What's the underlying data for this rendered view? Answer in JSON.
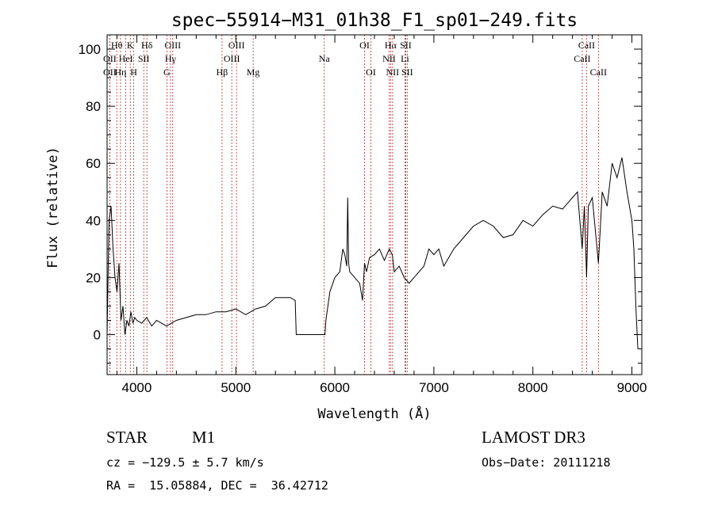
{
  "chart_data": {
    "type": "line",
    "title": "spec−55914−M31_01h38_F1_sp01−249.fits",
    "xlabel": "Wavelength (Å)",
    "ylabel": "Flux (relative)",
    "xlim": [
      3700,
      9100
    ],
    "ylim": [
      -14,
      105
    ],
    "xticks": [
      4000,
      5000,
      6000,
      7000,
      8000,
      9000
    ],
    "yticks": [
      0,
      20,
      40,
      60,
      80,
      100
    ],
    "grid": false,
    "series": [
      {
        "color": "#000000",
        "x": [
          3700,
          3710,
          3720,
          3740,
          3760,
          3780,
          3800,
          3820,
          3840,
          3860,
          3880,
          3900,
          3920,
          3940,
          3960,
          3980,
          4000,
          4050,
          4100,
          4150,
          4200,
          4250,
          4300,
          4350,
          4400,
          4500,
          4600,
          4700,
          4800,
          4900,
          5000,
          5100,
          5200,
          5300,
          5400,
          5500,
          5550,
          5600,
          5610,
          5900,
          5910,
          5950,
          6000,
          6050,
          6080,
          6100,
          6120,
          6130,
          6140,
          6150,
          6200,
          6250,
          6280,
          6300,
          6320,
          6350,
          6400,
          6450,
          6500,
          6550,
          6580,
          6600,
          6650,
          6700,
          6750,
          6800,
          6850,
          6900,
          6950,
          7000,
          7050,
          7100,
          7200,
          7300,
          7400,
          7500,
          7600,
          7700,
          7800,
          7900,
          8000,
          8100,
          8200,
          8300,
          8400,
          8450,
          8498,
          8520,
          8542,
          8560,
          8600,
          8662,
          8700,
          8750,
          8800,
          8850,
          8900,
          8950,
          9000,
          9020,
          9040,
          9060
        ],
        "y": [
          0,
          20,
          40,
          45,
          30,
          20,
          15,
          25,
          5,
          10,
          0,
          5,
          3,
          8,
          4,
          6,
          5,
          4,
          6,
          3,
          5,
          4,
          3,
          4,
          5,
          6,
          7,
          7,
          8,
          8,
          9,
          7,
          9,
          10,
          13,
          13,
          13,
          12,
          0,
          0,
          5,
          15,
          20,
          22,
          30,
          28,
          24,
          48,
          25,
          22,
          20,
          18,
          12,
          25,
          22,
          27,
          28,
          30,
          26,
          30,
          28,
          22,
          24,
          20,
          18,
          20,
          22,
          24,
          30,
          28,
          30,
          24,
          30,
          34,
          38,
          40,
          38,
          34,
          35,
          40,
          38,
          42,
          45,
          44,
          48,
          50,
          30,
          45,
          20,
          45,
          48,
          25,
          50,
          45,
          60,
          55,
          62,
          50,
          40,
          30,
          10,
          -5
        ]
      }
    ],
    "spectral_lines": [
      {
        "label": "Hθ",
        "wl": 3798,
        "row": 0
      },
      {
        "label": "OII",
        "wl": 3727,
        "row": 1
      },
      {
        "label": "OII",
        "wl": 3727,
        "row": 2
      },
      {
        "label": "HeI",
        "wl": 3889,
        "row": 1
      },
      {
        "label": "Hη",
        "wl": 3835,
        "row": 2
      },
      {
        "label": "K",
        "wl": 3934,
        "row": 0
      },
      {
        "label": "SII",
        "wl": 4070,
        "row": 1
      },
      {
        "label": "H",
        "wl": 3969,
        "row": 2
      },
      {
        "label": "Hδ",
        "wl": 4102,
        "row": 0
      },
      {
        "label": "OIII",
        "wl": 4363,
        "row": 0
      },
      {
        "label": "Hγ",
        "wl": 4340,
        "row": 1
      },
      {
        "label": "G",
        "wl": 4304,
        "row": 2
      },
      {
        "label": "OIII",
        "wl": 5007,
        "row": 0
      },
      {
        "label": "OIII",
        "wl": 4959,
        "row": 1
      },
      {
        "label": "Hβ",
        "wl": 4861,
        "row": 2
      },
      {
        "label": "Mg",
        "wl": 5175,
        "row": 2
      },
      {
        "label": "Na",
        "wl": 5893,
        "row": 1
      },
      {
        "label": "OI",
        "wl": 6300,
        "row": 0
      },
      {
        "label": "OI",
        "wl": 6364,
        "row": 2
      },
      {
        "label": "Hα",
        "wl": 6563,
        "row": 0
      },
      {
        "label": "SII",
        "wl": 6716,
        "row": 0
      },
      {
        "label": "NII",
        "wl": 6548,
        "row": 1
      },
      {
        "label": "Li",
        "wl": 6708,
        "row": 1
      },
      {
        "label": "NII",
        "wl": 6583,
        "row": 2
      },
      {
        "label": "SII",
        "wl": 6731,
        "row": 2
      },
      {
        "label": "CaII",
        "wl": 8542,
        "row": 0
      },
      {
        "label": "CaII",
        "wl": 8498,
        "row": 1
      },
      {
        "label": "CaII",
        "wl": 8662,
        "row": 2
      }
    ]
  },
  "info": {
    "class": "STAR",
    "subclass": "M1",
    "survey": "LAMOST DR3",
    "cz": "cz = −129.5 ± 5.7 km/s",
    "obs_date": "Obs−Date: 20111218",
    "coords": "RA =  15.05884, DEC =  36.42712"
  }
}
